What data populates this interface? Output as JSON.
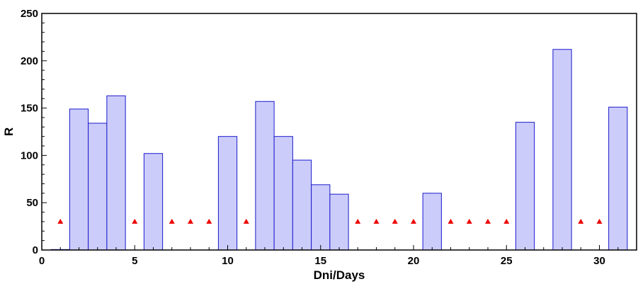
{
  "chart_data": {
    "type": "bar",
    "title": "",
    "xlabel": "Dni/Days",
    "ylabel": "R",
    "xlim": [
      0,
      32
    ],
    "ylim": [
      0,
      250
    ],
    "xticks": [
      0,
      5,
      10,
      15,
      20,
      25,
      30
    ],
    "yticks": [
      0,
      50,
      100,
      150,
      200,
      250
    ],
    "grid": false,
    "bar_fill": "#ccccfa",
    "bar_stroke": "#1a1acc",
    "marker_color": "#ee0000",
    "marker_shape": "triangle",
    "bars": [
      {
        "x": 1,
        "value": 0.5
      },
      {
        "x": 2,
        "value": 149
      },
      {
        "x": 3,
        "value": 134
      },
      {
        "x": 4,
        "value": 163
      },
      {
        "x": 6,
        "value": 102
      },
      {
        "x": 10,
        "value": 120
      },
      {
        "x": 12,
        "value": 157
      },
      {
        "x": 13,
        "value": 120
      },
      {
        "x": 14,
        "value": 95
      },
      {
        "x": 15,
        "value": 69
      },
      {
        "x": 16,
        "value": 59
      },
      {
        "x": 21,
        "value": 60
      },
      {
        "x": 26,
        "value": 135
      },
      {
        "x": 28,
        "value": 212
      },
      {
        "x": 31,
        "value": 151
      }
    ],
    "markers": {
      "x": [
        1,
        5,
        7,
        8,
        9,
        11,
        17,
        18,
        19,
        20,
        22,
        23,
        24,
        25,
        29,
        30
      ],
      "y": 30
    }
  }
}
